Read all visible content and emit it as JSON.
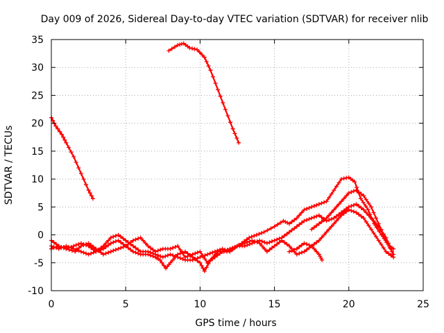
{
  "chart_data": {
    "type": "scatter",
    "title": "Day 009 of 2026, Sidereal Day-to-day VTEC variation (SDTVAR) for receiver nlib",
    "xlabel": "GPS time / hours",
    "ylabel": "SDTVAR / TECUs",
    "xlim": [
      0,
      25
    ],
    "ylim": [
      -10,
      35
    ],
    "xticks": [
      0,
      5,
      10,
      15,
      20,
      25
    ],
    "yticks": [
      -10,
      -5,
      0,
      5,
      10,
      15,
      20,
      25,
      30,
      35
    ],
    "xtick_labels": [
      "0",
      "5",
      "10",
      "15",
      "20",
      "25"
    ],
    "ytick_labels": [
      "-10",
      "-5",
      "0",
      "5",
      "10",
      "15",
      "20",
      "25",
      "30",
      "35"
    ],
    "grid": true,
    "marker": "+",
    "color": "#ff0000",
    "series": [
      {
        "name": "arc-1",
        "points": [
          [
            0.0,
            21.0
          ],
          [
            0.3,
            19.5
          ],
          [
            0.7,
            18.0
          ],
          [
            1.0,
            16.5
          ],
          [
            1.5,
            14.0
          ],
          [
            2.0,
            11.0
          ],
          [
            2.5,
            8.0
          ],
          [
            2.8,
            6.5
          ]
        ]
      },
      {
        "name": "arc-2",
        "points": [
          [
            7.9,
            33.0
          ],
          [
            8.5,
            34.0
          ],
          [
            8.9,
            34.3
          ],
          [
            9.3,
            33.5
          ],
          [
            9.8,
            33.2
          ],
          [
            10.3,
            31.8
          ],
          [
            10.7,
            29.5
          ],
          [
            11.2,
            26.0
          ],
          [
            11.7,
            22.5
          ],
          [
            12.2,
            19.0
          ],
          [
            12.6,
            16.5
          ]
        ]
      },
      {
        "name": "arc-3",
        "points": [
          [
            0.0,
            -1.0
          ],
          [
            0.5,
            -2.0
          ],
          [
            1.0,
            -2.5
          ],
          [
            1.6,
            -3.0
          ],
          [
            2.0,
            -2.0
          ],
          [
            2.5,
            -1.5
          ],
          [
            3.0,
            -2.5
          ],
          [
            3.5,
            -3.5
          ],
          [
            4.0,
            -3.0
          ],
          [
            4.5,
            -2.5
          ],
          [
            5.0,
            -2.0
          ],
          [
            5.5,
            -3.0
          ],
          [
            6.0,
            -3.5
          ],
          [
            6.5,
            -3.5
          ],
          [
            7.0,
            -4.0
          ],
          [
            7.3,
            -4.5
          ],
          [
            7.7,
            -6.0
          ],
          [
            8.0,
            -5.0
          ],
          [
            8.5,
            -3.5
          ],
          [
            9.0,
            -3.0
          ],
          [
            9.5,
            -4.0
          ],
          [
            10.0,
            -5.0
          ],
          [
            10.3,
            -6.5
          ],
          [
            10.7,
            -4.5
          ],
          [
            11.2,
            -3.0
          ],
          [
            11.8,
            -3.0
          ],
          [
            12.2,
            -2.5
          ],
          [
            12.8,
            -1.5
          ],
          [
            13.3,
            -0.5
          ],
          [
            13.8,
            0.0
          ],
          [
            14.3,
            0.5
          ],
          [
            15.0,
            1.5
          ],
          [
            15.6,
            2.5
          ],
          [
            16.0,
            2.0
          ],
          [
            16.5,
            3.0
          ],
          [
            17.0,
            4.5
          ],
          [
            17.5,
            5.0
          ],
          [
            18.0,
            5.5
          ],
          [
            18.5,
            6.0
          ],
          [
            19.0,
            8.0
          ],
          [
            19.5,
            10.0
          ],
          [
            20.0,
            10.3
          ],
          [
            20.4,
            9.5
          ],
          [
            20.8,
            6.5
          ],
          [
            21.3,
            4.5
          ],
          [
            21.7,
            2.0
          ],
          [
            22.2,
            0.0
          ],
          [
            22.7,
            -2.0
          ],
          [
            23.0,
            -2.5
          ]
        ]
      },
      {
        "name": "arc-4",
        "points": [
          [
            0.0,
            -2.0
          ],
          [
            0.5,
            -2.5
          ],
          [
            1.0,
            -2.0
          ],
          [
            1.5,
            -2.5
          ],
          [
            2.0,
            -3.0
          ],
          [
            2.5,
            -3.5
          ],
          [
            3.0,
            -3.0
          ],
          [
            3.5,
            -2.0
          ],
          [
            4.0,
            -0.5
          ],
          [
            4.5,
            0.0
          ],
          [
            5.0,
            -1.0
          ],
          [
            5.5,
            -2.0
          ],
          [
            6.0,
            -3.0
          ],
          [
            6.5,
            -3.0
          ],
          [
            7.0,
            -3.5
          ],
          [
            7.5,
            -4.0
          ],
          [
            8.0,
            -3.5
          ],
          [
            8.5,
            -4.0
          ],
          [
            9.0,
            -4.5
          ],
          [
            9.5,
            -4.5
          ],
          [
            10.0,
            -4.0
          ],
          [
            10.5,
            -3.5
          ],
          [
            11.0,
            -3.0
          ],
          [
            11.5,
            -2.5
          ],
          [
            12.0,
            -3.0
          ],
          [
            12.5,
            -2.0
          ],
          [
            13.0,
            -1.5
          ],
          [
            13.5,
            -1.0
          ],
          [
            14.0,
            -1.5
          ],
          [
            14.5,
            -3.0
          ],
          [
            15.0,
            -2.0
          ],
          [
            15.5,
            -1.0
          ],
          [
            16.0,
            -2.0
          ],
          [
            16.5,
            -3.5
          ],
          [
            17.0,
            -3.0
          ],
          [
            17.5,
            -2.0
          ],
          [
            18.0,
            -1.0
          ],
          [
            18.5,
            0.5
          ],
          [
            19.0,
            2.0
          ],
          [
            19.5,
            3.5
          ],
          [
            20.0,
            4.5
          ],
          [
            20.5,
            4.0
          ],
          [
            21.0,
            3.0
          ],
          [
            21.5,
            1.0
          ],
          [
            22.0,
            -1.0
          ],
          [
            22.5,
            -3.0
          ],
          [
            23.0,
            -4.0
          ]
        ]
      },
      {
        "name": "arc-5",
        "points": [
          [
            0.0,
            -2.5
          ],
          [
            0.5,
            -2.0
          ],
          [
            1.0,
            -2.5
          ],
          [
            1.5,
            -2.0
          ],
          [
            2.0,
            -1.5
          ],
          [
            2.5,
            -2.0
          ],
          [
            3.0,
            -3.0
          ],
          [
            3.5,
            -2.5
          ],
          [
            4.0,
            -1.5
          ],
          [
            4.5,
            -1.0
          ],
          [
            5.0,
            -2.0
          ],
          [
            5.5,
            -1.0
          ],
          [
            6.0,
            -0.5
          ],
          [
            6.5,
            -2.0
          ],
          [
            7.0,
            -3.0
          ],
          [
            7.5,
            -2.5
          ],
          [
            8.0,
            -2.5
          ],
          [
            8.5,
            -2.0
          ],
          [
            9.0,
            -4.0
          ],
          [
            9.5,
            -3.5
          ],
          [
            10.0,
            -3.0
          ],
          [
            10.5,
            -5.0
          ],
          [
            11.0,
            -4.0
          ],
          [
            11.5,
            -3.0
          ],
          [
            12.0,
            -2.5
          ],
          [
            12.5,
            -2.0
          ],
          [
            13.0,
            -2.0
          ],
          [
            13.5,
            -1.5
          ],
          [
            14.0,
            -1.0
          ],
          [
            14.5,
            -1.5
          ],
          [
            15.0,
            -1.0
          ],
          [
            15.5,
            -0.5
          ],
          [
            16.0,
            0.5
          ],
          [
            16.5,
            1.5
          ],
          [
            17.0,
            2.5
          ],
          [
            17.5,
            3.0
          ],
          [
            18.0,
            3.5
          ],
          [
            18.5,
            2.5
          ],
          [
            19.0,
            3.0
          ],
          [
            19.5,
            4.0
          ],
          [
            20.0,
            5.0
          ],
          [
            20.5,
            5.5
          ],
          [
            21.0,
            4.5
          ],
          [
            21.5,
            3.0
          ],
          [
            22.0,
            1.5
          ],
          [
            22.5,
            -0.5
          ],
          [
            23.0,
            -3.5
          ]
        ]
      },
      {
        "name": "arc-6",
        "points": [
          [
            16.0,
            -3.0
          ],
          [
            16.5,
            -2.5
          ],
          [
            17.0,
            -1.5
          ],
          [
            17.5,
            -2.0
          ],
          [
            18.0,
            -3.5
          ],
          [
            18.2,
            -4.5
          ]
        ]
      },
      {
        "name": "arc-7",
        "points": [
          [
            17.5,
            1.0
          ],
          [
            18.0,
            2.0
          ],
          [
            18.5,
            3.0
          ],
          [
            19.0,
            4.5
          ],
          [
            19.5,
            6.0
          ],
          [
            20.0,
            7.5
          ],
          [
            20.5,
            8.0
          ],
          [
            21.0,
            7.0
          ],
          [
            21.5,
            5.0
          ],
          [
            22.0,
            2.0
          ],
          [
            22.5,
            -1.0
          ],
          [
            22.9,
            -3.0
          ]
        ]
      }
    ]
  }
}
